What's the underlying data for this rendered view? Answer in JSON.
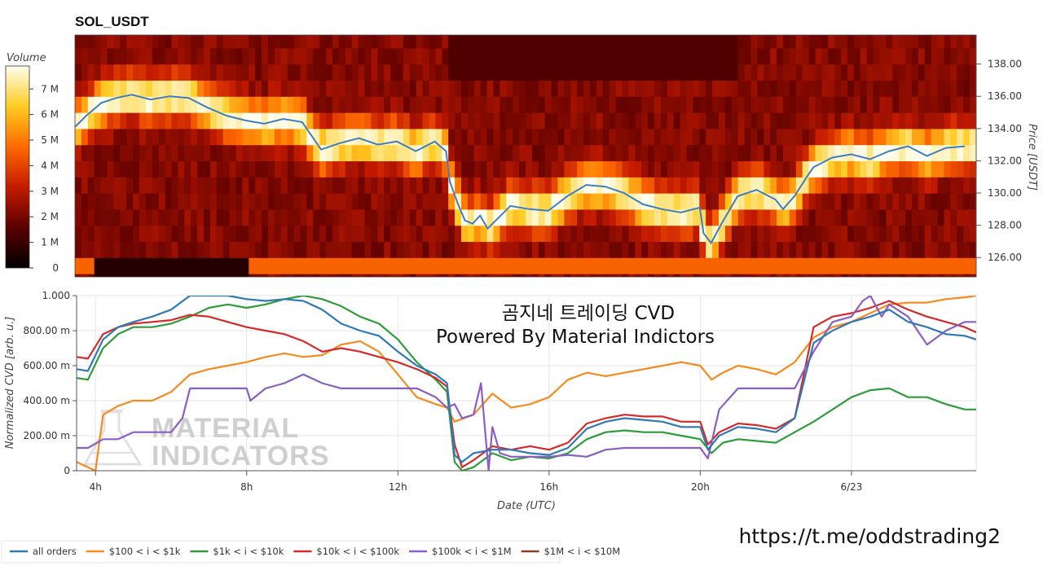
{
  "chart_data": [
    {
      "type": "heatmap",
      "title": "SOL_USDT",
      "ylabel": "Price [USDT]",
      "ylim": [
        124.8,
        139.8
      ],
      "y_ticks": [
        "126.00",
        "128.00",
        "130.00",
        "132.00",
        "134.00",
        "136.00",
        "138.00"
      ],
      "colorbar": {
        "label": "Volume",
        "ticks": [
          "0",
          "1 M",
          "2 M",
          "3 M",
          "4 M",
          "5 M",
          "6 M",
          "7 M"
        ],
        "range": [
          0,
          7.9
        ]
      },
      "price_line": {
        "name": "price",
        "color": "#3d7fbf",
        "t": [
          3.5,
          3.8,
          4.2,
          4.6,
          5.0,
          5.5,
          6.0,
          6.5,
          7.0,
          7.5,
          8.0,
          8.5,
          9.0,
          9.5,
          10.0,
          10.5,
          11.0,
          11.5,
          12.0,
          12.5,
          13.0,
          13.3,
          13.4,
          13.6,
          13.8,
          14.0,
          14.2,
          14.4,
          14.7,
          15.0,
          15.5,
          16.0,
          16.5,
          17.0,
          17.5,
          18.0,
          18.5,
          19.0,
          19.5,
          20.0,
          20.1,
          20.3,
          20.6,
          21.0,
          21.5,
          22.0,
          22.2,
          22.5,
          22.8,
          23.0,
          23.5,
          24.0,
          24.5,
          25.0,
          25.5,
          26.0,
          26.5,
          27.0
        ],
        "price": [
          134.1,
          134.8,
          135.6,
          135.9,
          136.1,
          135.8,
          136.0,
          135.9,
          135.3,
          134.8,
          134.5,
          134.3,
          134.6,
          134.4,
          132.7,
          133.1,
          133.4,
          133.0,
          133.2,
          132.6,
          133.2,
          132.6,
          130.7,
          129.4,
          128.3,
          128.1,
          128.6,
          127.8,
          128.5,
          129.2,
          129.0,
          128.9,
          129.8,
          130.5,
          130.4,
          130.0,
          129.3,
          129.0,
          128.8,
          129.1,
          127.5,
          126.9,
          128.2,
          129.8,
          130.2,
          129.6,
          129.0,
          129.8,
          130.9,
          131.6,
          132.2,
          132.4,
          132.1,
          132.6,
          132.9,
          132.3,
          132.8,
          132.9
        ]
      }
    },
    {
      "type": "line",
      "title": "곰지네 트레이딩 CVD",
      "subtitle": "Powered By Material Indictors",
      "xlabel": "Date (UTC)",
      "ylabel": "Normalized CVD [arb. u.]",
      "xlim": [
        3.5,
        27.3
      ],
      "ylim": [
        0,
        1.0
      ],
      "x_ticks": [
        {
          "t": 4,
          "label": "4h"
        },
        {
          "t": 8,
          "label": "8h"
        },
        {
          "t": 12,
          "label": "12h"
        },
        {
          "t": 16,
          "label": "16h"
        },
        {
          "t": 20,
          "label": "20h"
        },
        {
          "t": 24,
          "label": "6/23"
        }
      ],
      "y_ticks": [
        {
          "v": 0,
          "label": "0"
        },
        {
          "v": 0.2,
          "label": "200.00 m"
        },
        {
          "v": 0.4,
          "label": "400.00 m"
        },
        {
          "v": 0.6,
          "label": "600.00 m"
        },
        {
          "v": 0.8,
          "label": "800.00 m"
        },
        {
          "v": 1.0,
          "label": "1.000"
        }
      ],
      "series": [
        {
          "name": "all orders",
          "color": "#2f79b5",
          "t": [
            3.5,
            3.8,
            4.2,
            4.6,
            5.0,
            5.5,
            6.0,
            6.5,
            7.0,
            7.5,
            8.0,
            8.5,
            9.0,
            9.5,
            10.0,
            10.5,
            11.0,
            11.5,
            12.0,
            12.5,
            13.0,
            13.3,
            13.5,
            13.7,
            14.0,
            14.5,
            15.0,
            15.5,
            16.0,
            16.5,
            17.0,
            17.5,
            18.0,
            18.5,
            19.0,
            19.5,
            20.0,
            20.2,
            20.5,
            21.0,
            21.5,
            22.0,
            22.5,
            23.0,
            23.5,
            24.0,
            24.5,
            25.0,
            25.5,
            26.0,
            26.5,
            27.0,
            27.3
          ],
          "v": [
            0.58,
            0.57,
            0.75,
            0.82,
            0.85,
            0.88,
            0.92,
            1.0,
            1.0,
            1.0,
            0.98,
            0.97,
            0.98,
            0.97,
            0.92,
            0.84,
            0.8,
            0.77,
            0.68,
            0.6,
            0.55,
            0.5,
            0.09,
            0.05,
            0.1,
            0.12,
            0.12,
            0.1,
            0.09,
            0.13,
            0.24,
            0.28,
            0.3,
            0.29,
            0.28,
            0.25,
            0.25,
            0.12,
            0.2,
            0.25,
            0.24,
            0.22,
            0.3,
            0.73,
            0.8,
            0.85,
            0.88,
            0.92,
            0.85,
            0.82,
            0.78,
            0.77,
            0.75
          ]
        },
        {
          "name": "$100 < i < $1k",
          "color": "#f58a1f",
          "t": [
            3.5,
            3.8,
            4.0,
            4.2,
            4.6,
            5.0,
            5.5,
            6.0,
            6.5,
            7.0,
            7.5,
            8.0,
            8.5,
            9.0,
            9.5,
            10.0,
            10.5,
            11.0,
            11.5,
            12.0,
            12.5,
            13.0,
            13.3,
            13.5,
            14.0,
            14.5,
            15.0,
            15.5,
            16.0,
            16.5,
            17.0,
            17.5,
            18.0,
            18.5,
            19.0,
            19.5,
            20.0,
            20.3,
            20.6,
            21.0,
            21.5,
            22.0,
            22.5,
            23.0,
            23.5,
            24.0,
            24.5,
            25.0,
            25.5,
            26.0,
            26.5,
            27.0,
            27.3
          ],
          "v": [
            0.05,
            0.02,
            0.0,
            0.32,
            0.37,
            0.4,
            0.4,
            0.45,
            0.55,
            0.58,
            0.6,
            0.62,
            0.65,
            0.67,
            0.65,
            0.66,
            0.72,
            0.74,
            0.68,
            0.55,
            0.42,
            0.38,
            0.36,
            0.28,
            0.32,
            0.44,
            0.36,
            0.38,
            0.42,
            0.52,
            0.56,
            0.54,
            0.56,
            0.58,
            0.6,
            0.62,
            0.6,
            0.52,
            0.56,
            0.6,
            0.58,
            0.55,
            0.62,
            0.76,
            0.82,
            0.85,
            0.9,
            0.95,
            0.96,
            0.96,
            0.98,
            0.99,
            1.0
          ]
        },
        {
          "name": "$1k < i < $10k",
          "color": "#2e9c3a",
          "t": [
            3.5,
            3.8,
            4.2,
            4.6,
            5.0,
            5.5,
            6.0,
            6.5,
            7.0,
            7.5,
            8.0,
            8.5,
            9.0,
            9.5,
            10.0,
            10.5,
            11.0,
            11.5,
            12.0,
            12.5,
            13.0,
            13.3,
            13.5,
            13.7,
            14.0,
            14.5,
            15.0,
            15.5,
            16.0,
            16.5,
            17.0,
            17.5,
            18.0,
            18.5,
            19.0,
            19.5,
            20.0,
            20.3,
            20.6,
            21.0,
            21.5,
            22.0,
            22.5,
            23.0,
            23.5,
            24.0,
            24.5,
            25.0,
            25.5,
            26.0,
            26.5,
            27.0,
            27.3
          ],
          "v": [
            0.53,
            0.52,
            0.7,
            0.78,
            0.82,
            0.82,
            0.84,
            0.88,
            0.93,
            0.95,
            0.93,
            0.95,
            0.98,
            1.0,
            0.98,
            0.94,
            0.88,
            0.84,
            0.75,
            0.62,
            0.52,
            0.45,
            0.05,
            0.0,
            0.02,
            0.1,
            0.06,
            0.08,
            0.07,
            0.1,
            0.18,
            0.22,
            0.23,
            0.22,
            0.22,
            0.2,
            0.18,
            0.1,
            0.16,
            0.18,
            0.17,
            0.16,
            0.22,
            0.28,
            0.35,
            0.42,
            0.46,
            0.47,
            0.42,
            0.42,
            0.38,
            0.35,
            0.35
          ]
        },
        {
          "name": "$10k < i < $100k",
          "color": "#d42a2a",
          "t": [
            3.5,
            3.8,
            4.2,
            4.6,
            5.0,
            5.5,
            6.0,
            6.5,
            7.0,
            7.5,
            8.0,
            8.5,
            9.0,
            9.5,
            10.0,
            10.5,
            11.0,
            11.5,
            12.0,
            12.5,
            13.0,
            13.3,
            13.5,
            13.7,
            14.0,
            14.5,
            15.0,
            15.5,
            16.0,
            16.5,
            17.0,
            17.5,
            18.0,
            18.5,
            19.0,
            19.5,
            20.0,
            20.2,
            20.5,
            21.0,
            21.5,
            22.0,
            22.5,
            23.0,
            23.5,
            24.0,
            24.5,
            25.0,
            25.5,
            26.0,
            26.5,
            27.0,
            27.3
          ],
          "v": [
            0.65,
            0.64,
            0.78,
            0.82,
            0.84,
            0.85,
            0.86,
            0.89,
            0.88,
            0.85,
            0.82,
            0.8,
            0.78,
            0.74,
            0.68,
            0.7,
            0.68,
            0.65,
            0.62,
            0.58,
            0.53,
            0.48,
            0.15,
            0.02,
            0.06,
            0.14,
            0.12,
            0.14,
            0.12,
            0.16,
            0.27,
            0.3,
            0.32,
            0.31,
            0.31,
            0.28,
            0.28,
            0.15,
            0.22,
            0.27,
            0.26,
            0.24,
            0.3,
            0.82,
            0.88,
            0.9,
            0.93,
            0.97,
            0.92,
            0.88,
            0.85,
            0.82,
            0.79
          ]
        },
        {
          "name": "$100k < i < $1M",
          "color": "#8b5fc2",
          "t": [
            3.5,
            3.8,
            4.2,
            4.6,
            5.0,
            5.5,
            6.0,
            6.3,
            6.5,
            7.0,
            7.5,
            8.0,
            8.1,
            8.5,
            9.0,
            9.5,
            10.0,
            10.5,
            11.0,
            11.5,
            12.0,
            12.5,
            13.0,
            13.3,
            13.5,
            13.7,
            14.0,
            14.2,
            14.4,
            14.5,
            14.7,
            15.0,
            15.5,
            16.0,
            16.5,
            17.0,
            17.5,
            18.0,
            18.5,
            19.0,
            19.5,
            20.0,
            20.2,
            20.5,
            21.0,
            21.5,
            22.0,
            22.5,
            23.0,
            23.5,
            24.0,
            24.3,
            24.5,
            24.8,
            25.0,
            25.5,
            26.0,
            26.5,
            27.0,
            27.3
          ],
          "v": [
            0.13,
            0.13,
            0.18,
            0.18,
            0.22,
            0.22,
            0.22,
            0.3,
            0.47,
            0.47,
            0.47,
            0.47,
            0.4,
            0.47,
            0.5,
            0.55,
            0.5,
            0.47,
            0.47,
            0.47,
            0.47,
            0.47,
            0.42,
            0.36,
            0.38,
            0.3,
            0.32,
            0.5,
            0.0,
            0.25,
            0.1,
            0.08,
            0.08,
            0.08,
            0.09,
            0.08,
            0.12,
            0.13,
            0.13,
            0.13,
            0.13,
            0.13,
            0.07,
            0.35,
            0.47,
            0.47,
            0.47,
            0.47,
            0.68,
            0.85,
            0.88,
            0.97,
            1.0,
            0.88,
            0.95,
            0.88,
            0.72,
            0.8,
            0.85,
            0.85
          ]
        },
        {
          "name": "$1M < i < $10M",
          "color": "#8c3b2b",
          "t": [],
          "v": []
        }
      ]
    }
  ],
  "watermark": {
    "line1": "MATERIAL",
    "line2": "INDICATORS"
  },
  "link": "https://t.me/oddstrading2"
}
